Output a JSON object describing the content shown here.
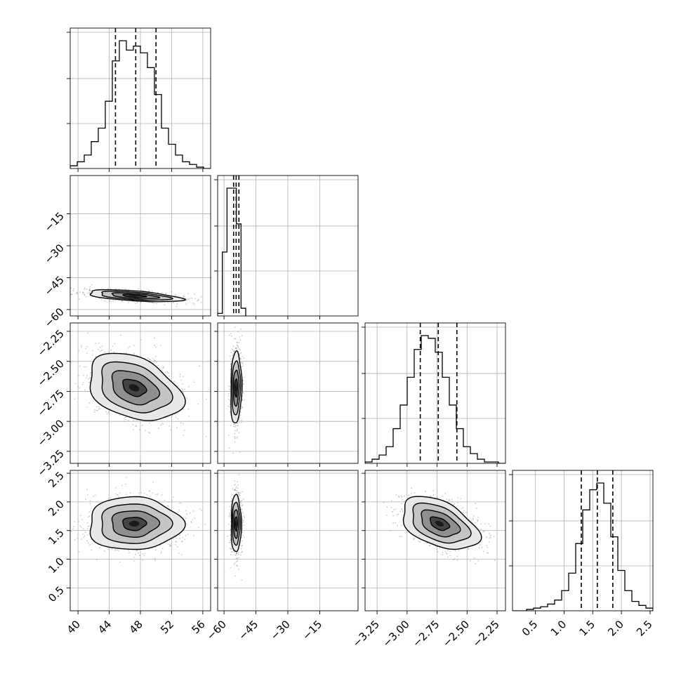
{
  "chart_data": {
    "type": "corner",
    "n_params": 4,
    "params": [
      {
        "range": [
          39,
          57
        ],
        "xticks": [
          "40",
          "44",
          "48",
          "52",
          "56"
        ],
        "xtick_values": [
          40,
          44,
          48,
          52,
          56
        ],
        "median": 47.4,
        "q16": 44.8,
        "q84": 50.0
      },
      {
        "range": [
          -63,
          3
        ],
        "ticks": [
          "−60",
          "−45",
          "−30",
          "−15"
        ],
        "tick_values": [
          -60,
          -45,
          -30,
          -15
        ],
        "median": -54.3,
        "q16": -55.5,
        "q84": -53.0
      },
      {
        "range": [
          -3.35,
          -2.18
        ],
        "ticks": [
          "−3.25",
          "−3.00",
          "−2.75",
          "−2.50",
          "−2.25"
        ],
        "tick_values": [
          -3.25,
          -3.0,
          -2.75,
          -2.5,
          -2.25
        ],
        "median": -2.74,
        "q16": -2.89,
        "q84": -2.585
      },
      {
        "range": [
          0.1,
          2.55
        ],
        "ticks": [
          "0.5",
          "1.0",
          "1.5",
          "2.0",
          "2.5"
        ],
        "tick_values": [
          0.5,
          1.0,
          1.5,
          2.0,
          2.5
        ],
        "median": 1.58,
        "q16": 1.3,
        "q84": 1.85
      }
    ],
    "histograms": [
      {
        "bin_start": 39.0,
        "bin_width": 0.9,
        "counts": [
          0.02,
          0.05,
          0.1,
          0.2,
          0.3,
          0.5,
          0.8,
          0.95,
          0.88,
          0.91,
          0.86,
          0.75,
          0.55,
          0.3,
          0.18,
          0.1,
          0.05,
          0.03,
          0.01,
          0.0
        ]
      },
      {
        "bin_start": -63.0,
        "bin_width": 2.2,
        "counts": [
          0.02,
          0.5,
          1.0,
          1.0,
          0.72,
          0.06
        ]
      },
      {
        "bin_start": -3.35,
        "bin_width": 0.0585,
        "counts": [
          0.01,
          0.03,
          0.06,
          0.12,
          0.25,
          0.42,
          0.62,
          0.82,
          0.92,
          0.9,
          0.8,
          0.62,
          0.42,
          0.25,
          0.12,
          0.07,
          0.03,
          0.01,
          0.01,
          0.0
        ]
      },
      {
        "bin_start": 0.1,
        "bin_width": 0.1225,
        "counts": [
          0.0,
          0.0,
          0.01,
          0.02,
          0.03,
          0.05,
          0.08,
          0.15,
          0.28,
          0.5,
          0.75,
          0.9,
          0.95,
          0.8,
          0.55,
          0.3,
          0.15,
          0.07,
          0.04,
          0.02
        ]
      }
    ],
    "pair_panels": [
      {
        "row": 1,
        "col": 0,
        "center": [
          47.2,
          -53.6
        ],
        "sd": [
          3.0,
          1.4
        ],
        "corr": -0.55
      },
      {
        "row": 2,
        "col": 0,
        "center": [
          47.2,
          -2.72
        ],
        "sd": [
          3.0,
          0.14
        ],
        "corr": -0.35
      },
      {
        "row": 2,
        "col": 1,
        "center": [
          -54.3,
          -2.72
        ],
        "sd": [
          1.3,
          0.15
        ],
        "corr": 0.1
      },
      {
        "row": 3,
        "col": 0,
        "center": [
          47.2,
          1.62
        ],
        "sd": [
          3.0,
          0.23
        ],
        "corr": 0.0
      },
      {
        "row": 3,
        "col": 1,
        "center": [
          -54.3,
          1.62
        ],
        "sd": [
          1.2,
          0.25
        ],
        "corr": 0.0
      },
      {
        "row": 3,
        "col": 2,
        "center": [
          -2.73,
          1.62
        ],
        "sd": [
          0.16,
          0.23
        ],
        "corr": -0.45
      }
    ],
    "contour_levels_sigma": [
      0.5,
      1.0,
      1.5,
      2.0
    ],
    "grid": true,
    "style": {
      "line": "#000000",
      "grid": "#b0b0b0",
      "points": "#8a8a8a",
      "background": "#ffffff"
    }
  }
}
